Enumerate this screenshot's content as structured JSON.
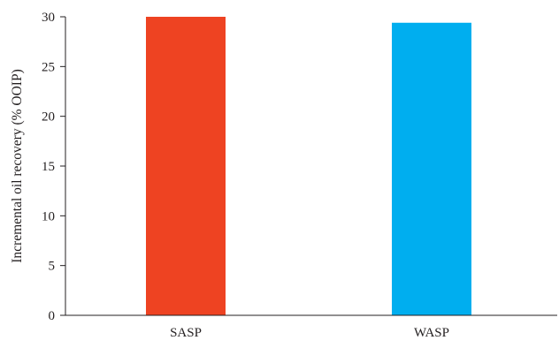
{
  "chart_data": {
    "type": "bar",
    "title": "",
    "xlabel": "",
    "ylabel": "Incremental oil recovery (% OOIP)",
    "categories": [
      "SASP",
      "WASP"
    ],
    "values": [
      30,
      29.4
    ],
    "ylim": [
      0,
      30
    ],
    "yticks": [
      "0",
      "5",
      "10",
      "15",
      "20",
      "25",
      "30"
    ],
    "grid": false,
    "legend": "none",
    "colors": [
      "#ee4322",
      "#00aeef"
    ]
  }
}
